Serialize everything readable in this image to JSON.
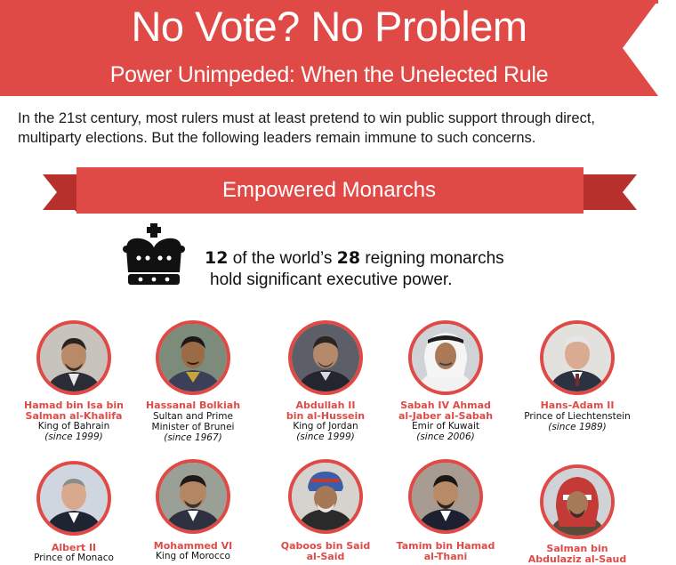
{
  "header": {
    "title": "No Vote? No Problem",
    "subtitle": "Power Unimpeded: When the Unelected Rule"
  },
  "intro": {
    "line1": "In the 21st century, most rulers must at least pretend to win public support through direct,",
    "line2": "multiparty elections. But the following leaders remain immune to such concerns."
  },
  "section": {
    "title": "Empowered Monarchs"
  },
  "stat": {
    "count": "12",
    "text_a": " of the world’s ",
    "total": "28",
    "text_b": " reigning monarchs",
    "line2": "hold significant executive power."
  },
  "icons": {
    "crown": "crown-icon"
  },
  "colors": {
    "accent": "#e04a46",
    "banner_dark": "#b8302c"
  },
  "monarchs": [
    {
      "name1": "Hamad bin Isa bin",
      "name2": "Salman al-Khalifa",
      "role1": "King of Bahrain",
      "role2": "",
      "since": "(since 1999)"
    },
    {
      "name1": "Hassanal Bolkiah",
      "name2": "",
      "role1": "Sultan and Prime",
      "role2": "Minister of Brunei",
      "since": "(since 1967)"
    },
    {
      "name1": "Abdullah II",
      "name2": "bin al-Hussein",
      "role1": "King of Jordan",
      "role2": "",
      "since": "(since 1999)"
    },
    {
      "name1": "Sabah IV  Ahmad",
      "name2": "al-Jaber al-Sabah",
      "role1": "Emir of Kuwait",
      "role2": "",
      "since": "(since 2006)"
    },
    {
      "name1": "Hans-Adam II",
      "name2": "",
      "role1": "Prince of Liechtenstein",
      "role2": "",
      "since": "(since 1989)"
    },
    {
      "name1": "Albert II",
      "name2": "",
      "role1": "Prince of Monaco",
      "role2": "",
      "since": ""
    },
    {
      "name1": "Mohammed VI",
      "name2": "",
      "role1": "King of Morocco",
      "role2": "",
      "since": ""
    },
    {
      "name1": "Qaboos bin Said",
      "name2": "al-Said",
      "role1": "",
      "role2": "",
      "since": ""
    },
    {
      "name1": "Tamim bin Hamad",
      "name2": "al-Thani",
      "role1": "",
      "role2": "",
      "since": ""
    },
    {
      "name1": "Salman bin",
      "name2": "Abdulaziz al-Saud",
      "role1": "",
      "role2": "",
      "since": ""
    }
  ]
}
